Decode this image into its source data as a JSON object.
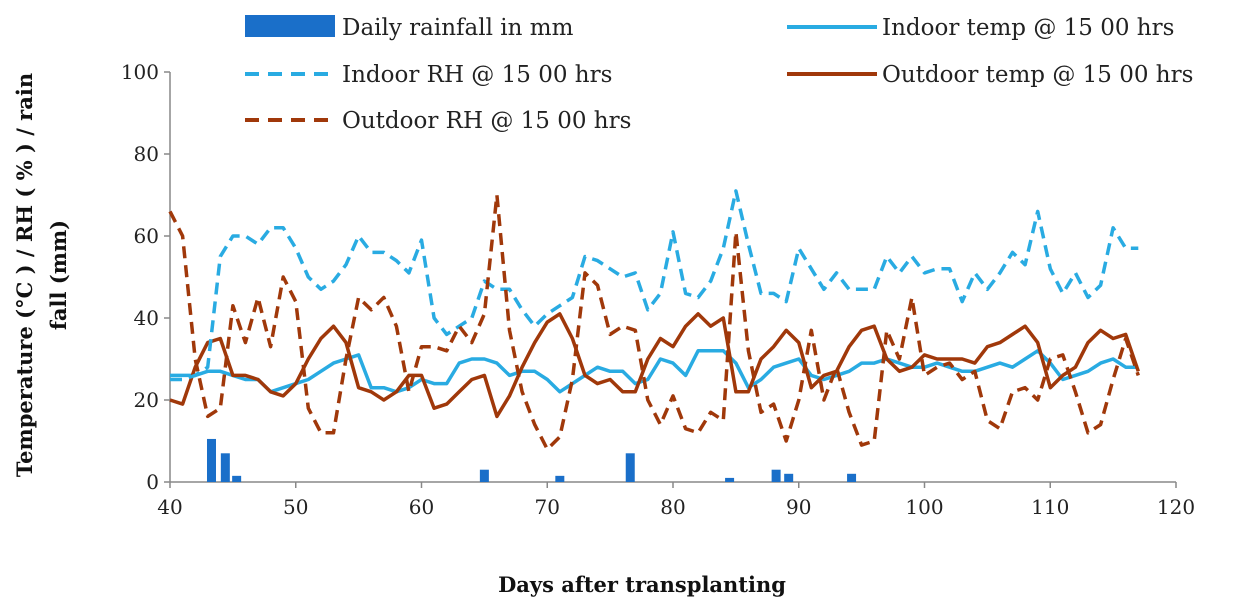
{
  "chart_data": {
    "type": "line",
    "title": "",
    "xlabel": "Days after transplanting",
    "ylabel_lines": [
      "Temperature (°C ) / RH ( % ) / rain",
      "fall (mm)"
    ],
    "xlim": [
      40,
      120
    ],
    "ylim": [
      0,
      100
    ],
    "x_ticks": [
      40,
      50,
      60,
      70,
      80,
      90,
      100,
      110,
      120
    ],
    "y_ticks": [
      0,
      20,
      40,
      60,
      80,
      100
    ],
    "grid": false,
    "legend": "top",
    "x": [
      40,
      41,
      42,
      43,
      44,
      45,
      46,
      47,
      48,
      49,
      50,
      51,
      52,
      53,
      54,
      55,
      56,
      57,
      58,
      59,
      60,
      61,
      62,
      63,
      64,
      65,
      66,
      67,
      68,
      69,
      70,
      71,
      72,
      73,
      74,
      75,
      76,
      77,
      78,
      79,
      80,
      81,
      82,
      83,
      84,
      85,
      86,
      87,
      88,
      89,
      90,
      91,
      92,
      93,
      94,
      95,
      96,
      97,
      98,
      99,
      100,
      101,
      102,
      103,
      104,
      105,
      106,
      107,
      108,
      109,
      110,
      111,
      112,
      113,
      114,
      115,
      116,
      117
    ],
    "series": [
      {
        "name": "Indoor temp @ 15 00 hrs",
        "color": "#29abe2",
        "style": "solid",
        "values": [
          26,
          26,
          26,
          27,
          27,
          26,
          25,
          25,
          22,
          23,
          24,
          25,
          27,
          29,
          30,
          31,
          23,
          23,
          22,
          23,
          25,
          24,
          24,
          29,
          30,
          30,
          29,
          26,
          27,
          27,
          25,
          22,
          24,
          26,
          28,
          27,
          27,
          24,
          25,
          30,
          29,
          26,
          32,
          32,
          32,
          29,
          23,
          25,
          28,
          29,
          30,
          26,
          25,
          26,
          27,
          29,
          29,
          30,
          29,
          28,
          28,
          29,
          28,
          27,
          27,
          28,
          29,
          28,
          30,
          32,
          29,
          25,
          26,
          27,
          29,
          30,
          28,
          28
        ]
      },
      {
        "name": "Indoor RH @ 15 00 hrs",
        "color": "#29abe2",
        "style": "dashed",
        "values": [
          25,
          25,
          26,
          28,
          55,
          60,
          60,
          58,
          62,
          62,
          57,
          50,
          47,
          49,
          53,
          60,
          56,
          56,
          54,
          51,
          59,
          40,
          36,
          38,
          40,
          49,
          47,
          47,
          42,
          38,
          41,
          43,
          45,
          55,
          54,
          52,
          50,
          51,
          42,
          46,
          61,
          46,
          45,
          49,
          57,
          71,
          58,
          46,
          46,
          44,
          57,
          52,
          47,
          51,
          47,
          47,
          47,
          55,
          51,
          55,
          51,
          52,
          52,
          44,
          51,
          47,
          51,
          56,
          53,
          66,
          52,
          46,
          51,
          45,
          48,
          62,
          57,
          57
        ]
      },
      {
        "name": "Outdoor temp @ 15 00 hrs",
        "color": "#a0380a",
        "style": "solid",
        "values": [
          20,
          19,
          28,
          34,
          35,
          26,
          26,
          25,
          22,
          21,
          24,
          30,
          35,
          38,
          34,
          23,
          22,
          20,
          22,
          26,
          26,
          18,
          19,
          22,
          25,
          26,
          16,
          21,
          28,
          34,
          39,
          41,
          35,
          26,
          24,
          25,
          22,
          22,
          30,
          35,
          33,
          38,
          41,
          38,
          40,
          22,
          22,
          30,
          33,
          37,
          34,
          23,
          26,
          27,
          33,
          37,
          38,
          30,
          27,
          28,
          31,
          30,
          30,
          30,
          29,
          33,
          34,
          36,
          38,
          34,
          23,
          26,
          28,
          34,
          37,
          35,
          36,
          27
        ]
      },
      {
        "name": "Outdoor RH @ 15 00 hrs",
        "color": "#a0380a",
        "style": "dashed",
        "values": [
          66,
          60,
          30,
          16,
          18,
          43,
          34,
          45,
          33,
          50,
          44,
          18,
          12,
          12,
          30,
          45,
          42,
          45,
          38,
          22,
          33,
          33,
          32,
          38,
          34,
          41,
          70,
          37,
          22,
          14,
          8,
          11,
          25,
          51,
          48,
          36,
          38,
          37,
          20,
          14,
          21,
          13,
          12,
          17,
          15,
          61,
          32,
          17,
          19,
          10,
          20,
          37,
          20,
          28,
          17,
          9,
          10,
          37,
          30,
          45,
          26,
          28,
          29,
          25,
          27,
          15,
          13,
          22,
          23,
          20,
          30,
          31,
          22,
          12,
          14,
          25,
          35,
          26
        ]
      },
      {
        "name": "Daily rainfall in mm",
        "color": "#1a6fc9",
        "style": "bar",
        "points": [
          [
            43.3,
            10.5
          ],
          [
            44.4,
            7
          ],
          [
            45.3,
            1.5
          ],
          [
            65,
            3
          ],
          [
            71,
            1.5
          ],
          [
            76.6,
            7
          ],
          [
            84.5,
            1
          ],
          [
            88.2,
            3
          ],
          [
            89.2,
            2
          ],
          [
            94.2,
            2
          ]
        ]
      }
    ]
  }
}
